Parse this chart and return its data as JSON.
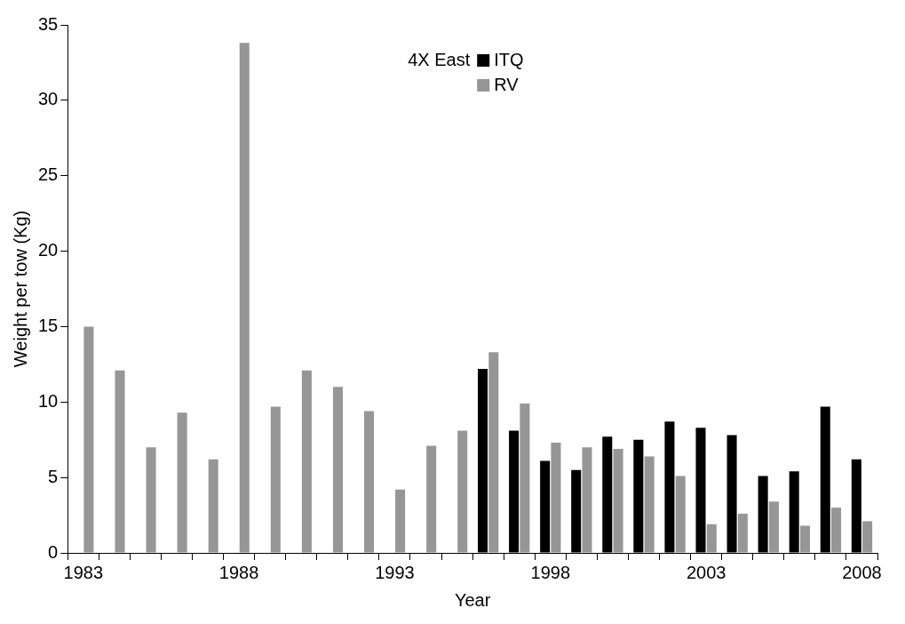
{
  "chart_data": {
    "type": "bar",
    "xlabel": "Year",
    "ylabel": "Weight per tow (Kg)",
    "legend_title": "4X East",
    "legend": "top",
    "grid": false,
    "categories": [
      "1983",
      null,
      null,
      null,
      null,
      "1988",
      null,
      null,
      null,
      null,
      "1993",
      null,
      null,
      null,
      null,
      "1998",
      null,
      null,
      null,
      null,
      "2003",
      null,
      null,
      null,
      null,
      "2008"
    ],
    "series": [
      {
        "name": "ITQ",
        "color": "#000000",
        "values": [
          null,
          null,
          null,
          null,
          null,
          null,
          null,
          null,
          null,
          null,
          null,
          null,
          null,
          12.2,
          8.1,
          6.1,
          5.5,
          7.7,
          7.5,
          8.7,
          8.3,
          7.8,
          5.1,
          5.4,
          9.7,
          6.2
        ]
      },
      {
        "name": "RV",
        "color": "#969696",
        "values": [
          15.0,
          12.1,
          7.0,
          9.3,
          6.2,
          33.8,
          9.7,
          12.1,
          11.0,
          9.4,
          4.2,
          7.1,
          8.1,
          13.3,
          9.9,
          7.3,
          7.0,
          6.9,
          6.4,
          5.1,
          1.9,
          2.6,
          3.4,
          1.8,
          3.0,
          2.1
        ]
      }
    ],
    "ylim": [
      0,
      35
    ],
    "yticks": [
      0,
      5,
      10,
      15,
      20,
      25,
      30,
      35
    ]
  }
}
